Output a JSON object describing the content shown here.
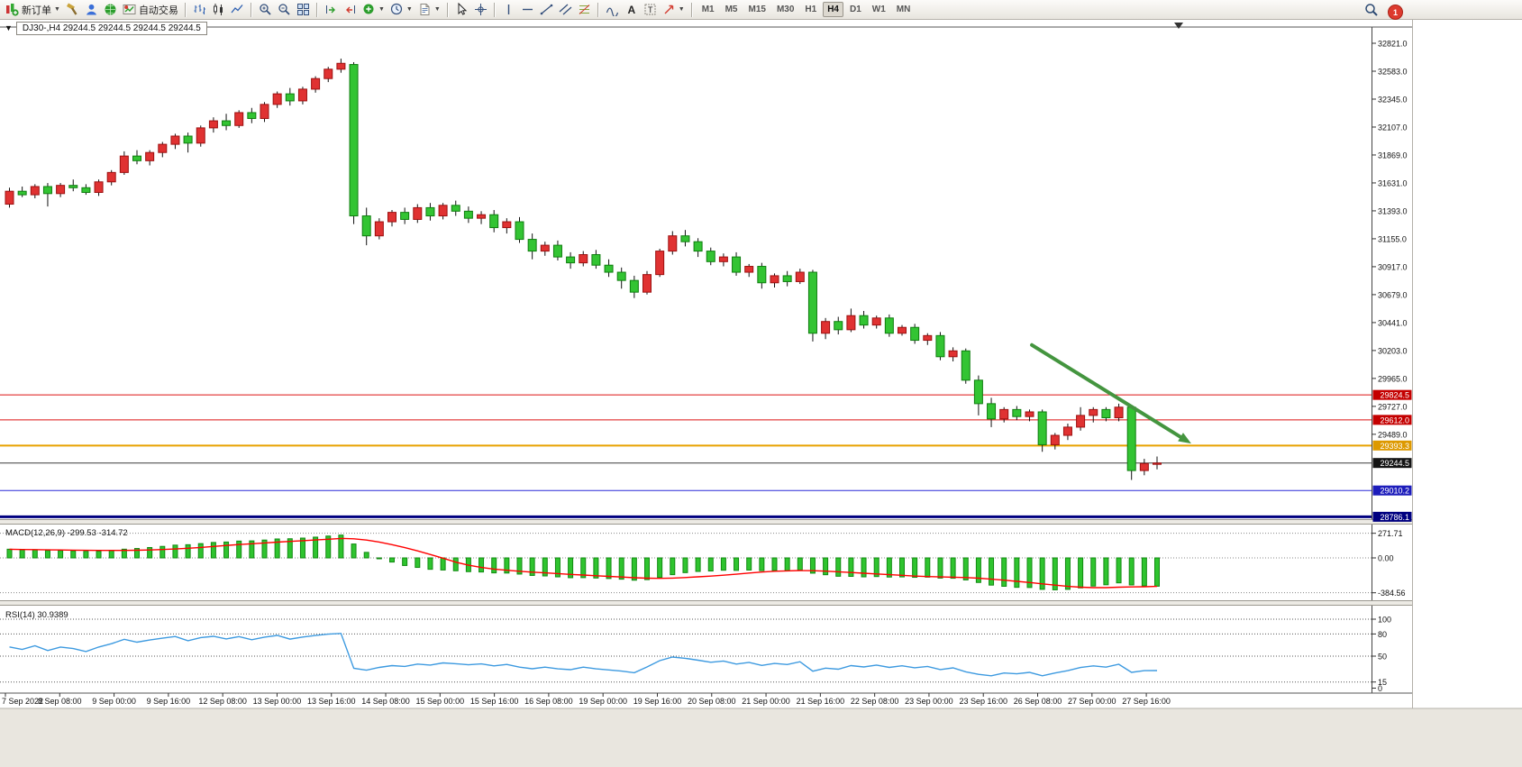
{
  "toolbar": {
    "new_order": "新订单",
    "autotrading": "自动交易",
    "timeframes": [
      "M1",
      "M5",
      "M15",
      "M30",
      "H1",
      "H4",
      "D1",
      "W1",
      "MN"
    ],
    "active_timeframe": "H4",
    "notification_count": "1"
  },
  "chart_info": {
    "text": "DJ30-,H4  29244.5 29244.5 29244.5 29244.5"
  },
  "price_axis": {
    "labels": [
      32821.0,
      32583.0,
      32345.0,
      32107.0,
      31869.0,
      31631.0,
      31393.0,
      31155.0,
      30917.0,
      30679.0,
      30441.0,
      30203.0,
      29965.0,
      29727.0,
      29489.0
    ]
  },
  "hlines": [
    {
      "price": 29824.5,
      "label": "29824.5",
      "color": "#dd1111",
      "badge": "#c40000",
      "width": 1
    },
    {
      "price": 29612.0,
      "label": "29612.0",
      "color": "#dd1111",
      "badge": "#c40000",
      "width": 1
    },
    {
      "price": 29393.3,
      "label": "29393.3",
      "color": "#e8a200",
      "badge": "#dd9900",
      "width": 2
    },
    {
      "price": 29244.5,
      "label": "29244.5",
      "color": "#3c3c3c",
      "badge": "#141414",
      "width": 1
    },
    {
      "price": 29010.2,
      "label": "29010.2",
      "color": "#2a2ad8",
      "badge": "#1d1dbb",
      "width": 1
    },
    {
      "price": 28786.1,
      "label": "28786.1",
      "color": "#000080",
      "badge": "#000080",
      "width": 3
    }
  ],
  "chart_data": {
    "type": "candlestick",
    "symbol": "DJ30-",
    "timeframe": "H4",
    "ohlc_current": {
      "open": 29244.5,
      "high": 29244.5,
      "low": 29244.5,
      "close": 29244.5
    },
    "colors": {
      "up_fill": "#e03232",
      "up_stroke": "#9c1010",
      "down_fill": "#33c433",
      "down_stroke": "#0f7d0f",
      "wick": "#111111"
    },
    "candles": [
      [
        31450,
        31590,
        31420,
        31560
      ],
      [
        31560,
        31600,
        31510,
        31530
      ],
      [
        31530,
        31620,
        31500,
        31600
      ],
      [
        31600,
        31630,
        31430,
        31540
      ],
      [
        31540,
        31630,
        31510,
        31610
      ],
      [
        31610,
        31660,
        31560,
        31590
      ],
      [
        31590,
        31620,
        31530,
        31550
      ],
      [
        31550,
        31660,
        31520,
        31640
      ],
      [
        31640,
        31740,
        31610,
        31720
      ],
      [
        31720,
        31900,
        31700,
        31860
      ],
      [
        31860,
        31910,
        31790,
        31820
      ],
      [
        31820,
        31910,
        31780,
        31890
      ],
      [
        31890,
        31980,
        31850,
        31960
      ],
      [
        31960,
        32050,
        31920,
        32030
      ],
      [
        32030,
        32060,
        31890,
        31970
      ],
      [
        31970,
        32120,
        31940,
        32100
      ],
      [
        32100,
        32190,
        32060,
        32160
      ],
      [
        32160,
        32220,
        32080,
        32120
      ],
      [
        32120,
        32250,
        32100,
        32230
      ],
      [
        32230,
        32270,
        32140,
        32180
      ],
      [
        32180,
        32320,
        32150,
        32300
      ],
      [
        32300,
        32410,
        32270,
        32390
      ],
      [
        32390,
        32440,
        32290,
        32330
      ],
      [
        32330,
        32450,
        32300,
        32430
      ],
      [
        32430,
        32540,
        32400,
        32520
      ],
      [
        32520,
        32620,
        32490,
        32600
      ],
      [
        32600,
        32690,
        32570,
        32650
      ],
      [
        32640,
        32660,
        31280,
        31350
      ],
      [
        31350,
        31420,
        31100,
        31180
      ],
      [
        31180,
        31330,
        31150,
        31300
      ],
      [
        31300,
        31400,
        31260,
        31380
      ],
      [
        31380,
        31420,
        31280,
        31320
      ],
      [
        31320,
        31450,
        31290,
        31420
      ],
      [
        31420,
        31460,
        31310,
        31350
      ],
      [
        31350,
        31460,
        31320,
        31440
      ],
      [
        31440,
        31480,
        31350,
        31390
      ],
      [
        31390,
        31430,
        31290,
        31330
      ],
      [
        31330,
        31390,
        31280,
        31360
      ],
      [
        31360,
        31400,
        31210,
        31250
      ],
      [
        31250,
        31330,
        31200,
        31300
      ],
      [
        31300,
        31340,
        31120,
        31150
      ],
      [
        31150,
        31200,
        30980,
        31050
      ],
      [
        31050,
        31130,
        31010,
        31100
      ],
      [
        31100,
        31140,
        30970,
        31000
      ],
      [
        31000,
        31040,
        30900,
        30950
      ],
      [
        30950,
        31050,
        30920,
        31020
      ],
      [
        31020,
        31060,
        30900,
        30930
      ],
      [
        30930,
        30980,
        30830,
        30870
      ],
      [
        30870,
        30910,
        30730,
        30800
      ],
      [
        30800,
        30840,
        30650,
        30700
      ],
      [
        30700,
        30880,
        30680,
        30850
      ],
      [
        30850,
        31070,
        30830,
        31050
      ],
      [
        31050,
        31220,
        31020,
        31180
      ],
      [
        31180,
        31230,
        31090,
        31130
      ],
      [
        31130,
        31160,
        31000,
        31050
      ],
      [
        31050,
        31080,
        30930,
        30960
      ],
      [
        30960,
        31030,
        30920,
        31000
      ],
      [
        31000,
        31040,
        30840,
        30870
      ],
      [
        30870,
        30940,
        30830,
        30920
      ],
      [
        30920,
        30950,
        30730,
        30780
      ],
      [
        30780,
        30860,
        30740,
        30840
      ],
      [
        30840,
        30880,
        30750,
        30790
      ],
      [
        30790,
        30900,
        30770,
        30870
      ],
      [
        30870,
        30890,
        30280,
        30350
      ],
      [
        30350,
        30480,
        30300,
        30450
      ],
      [
        30450,
        30490,
        30340,
        30380
      ],
      [
        30380,
        30560,
        30360,
        30500
      ],
      [
        30500,
        30540,
        30390,
        30420
      ],
      [
        30420,
        30500,
        30390,
        30480
      ],
      [
        30480,
        30510,
        30320,
        30350
      ],
      [
        30350,
        30420,
        30330,
        30400
      ],
      [
        30400,
        30430,
        30260,
        30290
      ],
      [
        30290,
        30350,
        30250,
        30330
      ],
      [
        30330,
        30360,
        30120,
        30150
      ],
      [
        30150,
        30230,
        30110,
        30200
      ],
      [
        30200,
        30220,
        29920,
        29950
      ],
      [
        29950,
        29990,
        29650,
        29750
      ],
      [
        29750,
        29800,
        29550,
        29620
      ],
      [
        29620,
        29720,
        29590,
        29700
      ],
      [
        29700,
        29730,
        29610,
        29640
      ],
      [
        29640,
        29700,
        29600,
        29680
      ],
      [
        29680,
        29700,
        29340,
        29400
      ],
      [
        29400,
        29500,
        29360,
        29480
      ],
      [
        29480,
        29580,
        29440,
        29550
      ],
      [
        29550,
        29720,
        29520,
        29650
      ],
      [
        29650,
        29720,
        29590,
        29700
      ],
      [
        29700,
        29720,
        29600,
        29630
      ],
      [
        29630,
        29750,
        29600,
        29720
      ],
      [
        29720,
        29740,
        29100,
        29180
      ],
      [
        29180,
        29280,
        29140,
        29240
      ],
      [
        29240,
        29300,
        29190,
        29244.5
      ]
    ],
    "time_labels": [
      "7 Sep 2022",
      "8 Sep 08:00",
      "9 Sep 00:00",
      "9 Sep 16:00",
      "12 Sep 08:00",
      "13 Sep 00:00",
      "13 Sep 16:00",
      "14 Sep 08:00",
      "15 Sep 00:00",
      "15 Sep 16:00",
      "16 Sep 08:00",
      "19 Sep 00:00",
      "19 Sep 16:00",
      "20 Sep 08:00",
      "21 Sep 00:00",
      "21 Sep 16:00",
      "22 Sep 08:00",
      "23 Sep 00:00",
      "23 Sep 16:00",
      "26 Sep 08:00",
      "27 Sep 00:00",
      "27 Sep 16:00"
    ],
    "indicators": [
      {
        "name": "MACD",
        "params": [
          12,
          26,
          9
        ],
        "label": "MACD(12,26,9) -299.53 -314.72",
        "current_macd": -299.53,
        "current_signal": -314.72,
        "axis_labels": [
          "271.71",
          "0.00",
          "-384.56"
        ],
        "histogram_color": "#2fc42f",
        "histogram_stroke": "#128a12",
        "signal_color": "#ff0000"
      },
      {
        "name": "RSI",
        "params": [
          14
        ],
        "label": "RSI(14) 30.9389",
        "current": 30.9389,
        "axis_labels": [
          "100",
          "80",
          "50",
          "15",
          "0"
        ],
        "levels": [
          100,
          80,
          50,
          15
        ],
        "line_color": "#3d9ae0"
      }
    ],
    "annotations": [
      {
        "type": "trend-arrow",
        "from_bar": 80.5,
        "from_price": 30250,
        "to_bar": 93,
        "to_price": 29410,
        "color": "#44953f",
        "width": 4
      }
    ]
  }
}
